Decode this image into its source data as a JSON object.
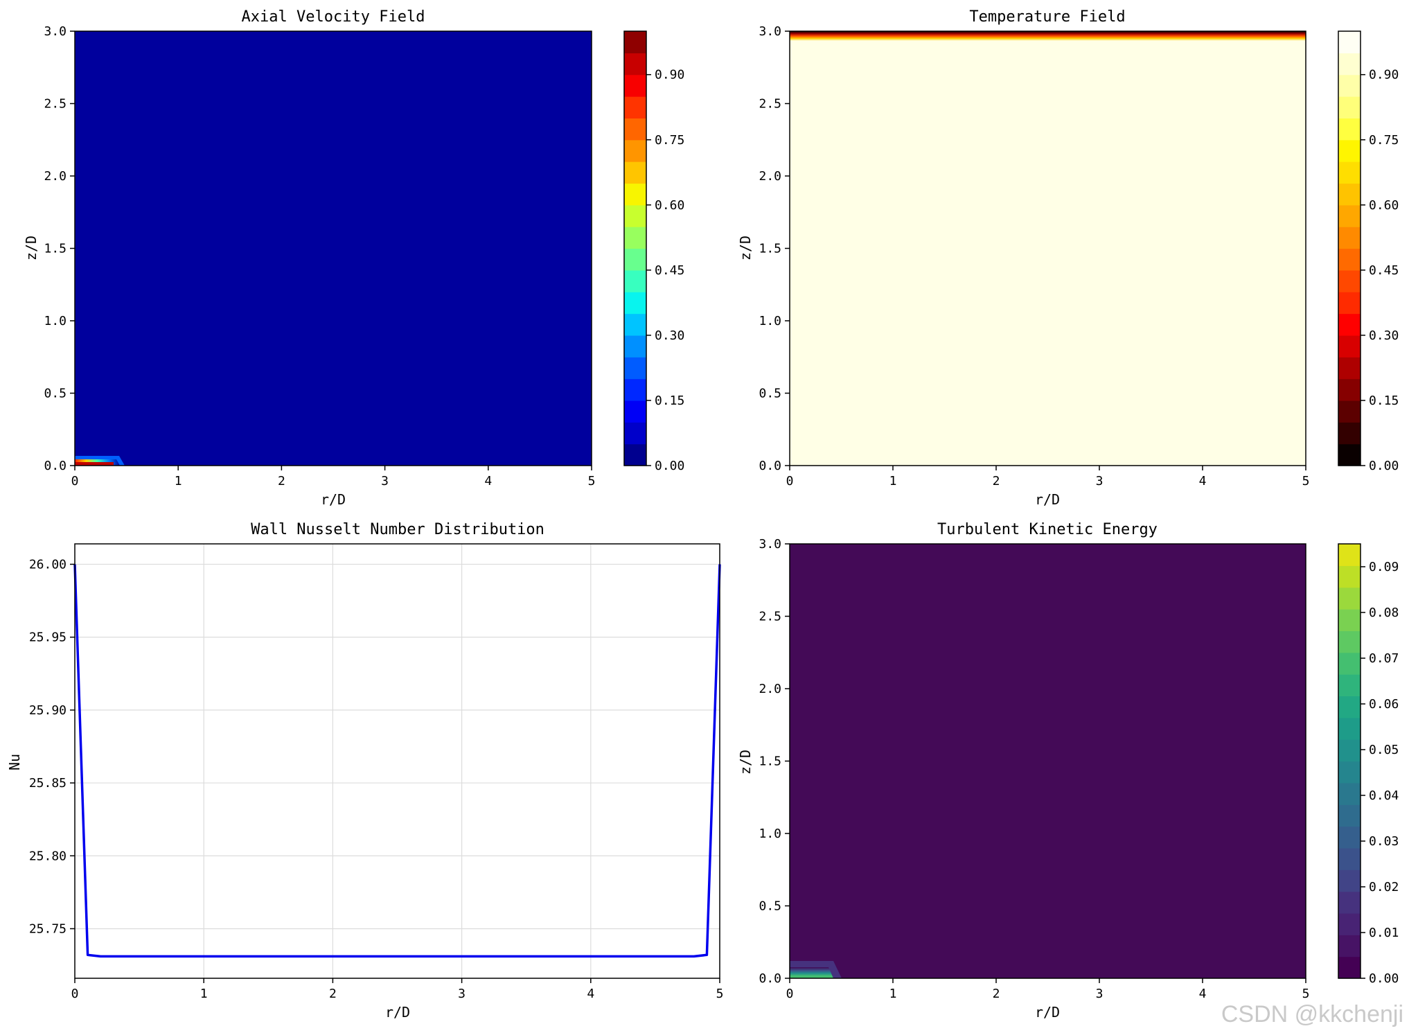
{
  "watermark": "CSDN @kkchenji",
  "chart_data": [
    {
      "id": "p1",
      "type": "heatmap",
      "title": "Axial Velocity Field",
      "xlabel": "r/D",
      "ylabel": "z/D",
      "xlim": [
        0,
        5
      ],
      "ylim": [
        0,
        3
      ],
      "xticks": [
        "0",
        "1",
        "2",
        "3",
        "4",
        "5"
      ],
      "yticks": [
        "0.0",
        "0.5",
        "1.0",
        "1.5",
        "2.0",
        "2.5",
        "3.0"
      ],
      "colormap": [
        "#00008f",
        "#0000ca",
        "#0000f6",
        "#0028ff",
        "#005cff",
        "#0090ff",
        "#00c4ff",
        "#08f4ee",
        "#38ffbf",
        "#68ff8e",
        "#98ff5e",
        "#c8ff2e",
        "#f8f500",
        "#ffc500",
        "#ff9500",
        "#ff6600",
        "#ff3400",
        "#f80000",
        "#c80000",
        "#8f0000"
      ],
      "background_color": "#00009d",
      "colorbar": {
        "range": [
          0,
          1.0
        ],
        "ticks": [
          "0.00",
          "0.15",
          "0.30",
          "0.45",
          "0.60",
          "0.75",
          "0.90"
        ]
      },
      "feature": {
        "description_values": {
          "r_extent": 0.45,
          "z_extent": 0.06,
          "peak_value": 1.0
        }
      }
    },
    {
      "id": "p2",
      "type": "heatmap",
      "title": "Temperature Field",
      "xlabel": "r/D",
      "ylabel": "z/D",
      "xlim": [
        0,
        5
      ],
      "ylim": [
        0,
        3
      ],
      "xticks": [
        "0",
        "1",
        "2",
        "3",
        "4",
        "5"
      ],
      "yticks": [
        "0.0",
        "0.5",
        "1.0",
        "1.5",
        "2.0",
        "2.5",
        "3.0"
      ],
      "colormap": [
        "#0a0000",
        "#330000",
        "#5c0000",
        "#860000",
        "#ae0000",
        "#d80000",
        "#ff0000",
        "#ff2b00",
        "#ff4800",
        "#ff6a00",
        "#ff8a00",
        "#ffa700",
        "#ffc300",
        "#ffde00",
        "#fff500",
        "#ffff40",
        "#ffff7a",
        "#ffffa8",
        "#ffffd0",
        "#fffff4"
      ],
      "background_color": "#ffffe6",
      "colorbar": {
        "range": [
          0,
          1.0
        ],
        "ticks": [
          "0.00",
          "0.15",
          "0.30",
          "0.45",
          "0.60",
          "0.75",
          "0.90"
        ]
      },
      "feature": {
        "description_values": {
          "z_start": 2.94,
          "z_end": 3.0
        }
      }
    },
    {
      "id": "p3",
      "type": "line",
      "title": "Wall Nusselt Number Distribution",
      "xlabel": "r/D",
      "ylabel": "Nu",
      "xlim": [
        0,
        5
      ],
      "ylim": [
        25.716,
        26.014
      ],
      "xticks": [
        "0",
        "1",
        "2",
        "3",
        "4",
        "5"
      ],
      "yticks": [
        "25.75",
        "25.80",
        "25.85",
        "25.90",
        "25.95",
        "26.00"
      ],
      "grid": true,
      "series": [
        {
          "color": "#0000ee",
          "x": [
            0,
            0.1,
            0.2,
            0.5,
            1,
            2,
            3,
            4,
            4.7,
            4.8,
            4.9,
            5
          ],
          "y": [
            26.0,
            25.732,
            25.731,
            25.731,
            25.731,
            25.731,
            25.731,
            25.731,
            25.731,
            25.731,
            25.732,
            26.0
          ]
        }
      ]
    },
    {
      "id": "p4",
      "type": "heatmap",
      "title": "Turbulent Kinetic Energy",
      "xlabel": "r/D",
      "ylabel": "z/D",
      "xlim": [
        0,
        5
      ],
      "ylim": [
        0,
        3
      ],
      "xticks": [
        "0",
        "1",
        "2",
        "3",
        "4",
        "5"
      ],
      "yticks": [
        "0.0",
        "0.5",
        "1.0",
        "1.5",
        "2.0",
        "2.5",
        "3.0"
      ],
      "colormap": [
        "#440154",
        "#471365",
        "#482374",
        "#46327e",
        "#414487",
        "#3b528b",
        "#355f8d",
        "#2f6c8e",
        "#2a788e",
        "#25858e",
        "#21918c",
        "#1e9c89",
        "#22a884",
        "#2fb47c",
        "#44bf70",
        "#5ec962",
        "#7ad151",
        "#9bd93c",
        "#bddf26",
        "#dfe318"
      ],
      "background_color": "#440a57",
      "colorbar": {
        "range": [
          0,
          0.095
        ],
        "ticks": [
          "0.00",
          "0.01",
          "0.02",
          "0.03",
          "0.04",
          "0.05",
          "0.06",
          "0.07",
          "0.08",
          "0.09"
        ]
      },
      "feature": {
        "description_values": {
          "r_extent": 0.45,
          "z_extent": 0.08,
          "peak_value": 0.06
        }
      }
    }
  ]
}
